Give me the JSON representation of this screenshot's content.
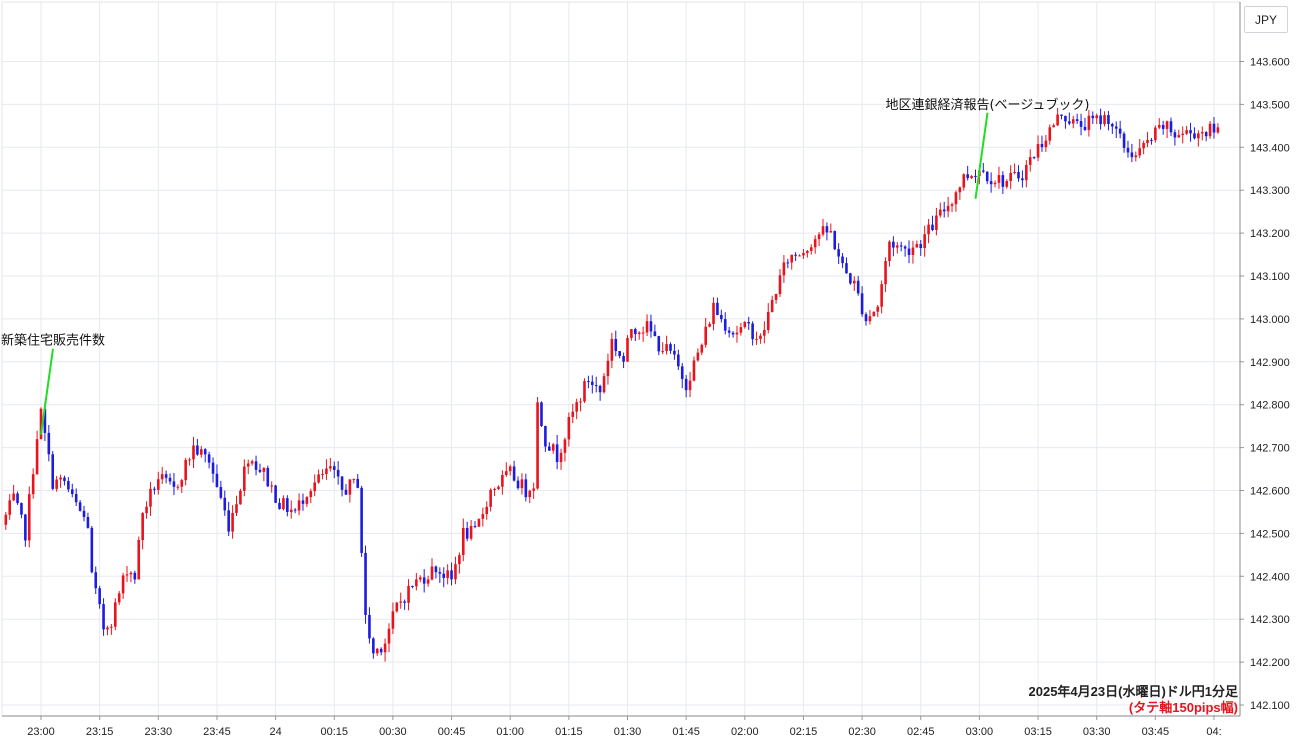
{
  "currency_label": "JPY",
  "caption": {
    "main": "2025年4月23日(水曜日)ドル円1分足",
    "sub": "(タテ軸150pips幅)",
    "sub_color": "#e8141d"
  },
  "colors": {
    "up": "#e8141d",
    "down": "#1c1ce0",
    "annotation_line": "#22dd22",
    "grid": "#e6eaef",
    "axis": "#222222"
  },
  "chart_data": {
    "type": "candlestick",
    "title": "",
    "xlabel": "",
    "ylabel": "",
    "ylim": [
      142.08,
      143.66
    ],
    "y_ticks": [
      "142.100",
      "142.200",
      "142.300",
      "142.400",
      "142.500",
      "142.600",
      "142.700",
      "142.800",
      "142.900",
      "143.000",
      "143.100",
      "143.200",
      "143.300",
      "143.400",
      "143.500",
      "143.600"
    ],
    "x_ticks": [
      "23:00",
      "23:15",
      "23:30",
      "23:45",
      "24",
      "00:15",
      "00:30",
      "00:45",
      "01:00",
      "01:15",
      "01:30",
      "01:45",
      "02:00",
      "02:15",
      "02:30",
      "02:45",
      "03:00",
      "03:15",
      "03:30",
      "03:45",
      "04:"
    ],
    "x_tick_minutes": [
      0,
      15,
      30,
      45,
      60,
      75,
      90,
      105,
      120,
      135,
      150,
      165,
      180,
      195,
      210,
      225,
      240,
      255,
      270,
      285,
      300
    ],
    "x_range_minutes": [
      -9,
      301
    ],
    "keypoints": [
      {
        "m": -9,
        "p": 142.52
      },
      {
        "m": -6,
        "p": 142.58
      },
      {
        "m": -3,
        "p": 142.5
      },
      {
        "m": 0,
        "p": 142.73
      },
      {
        "m": 1,
        "p": 142.78
      },
      {
        "m": 4,
        "p": 142.62
      },
      {
        "m": 7,
        "p": 142.62
      },
      {
        "m": 9,
        "p": 142.58
      },
      {
        "m": 13,
        "p": 142.52
      },
      {
        "m": 14,
        "p": 142.4
      },
      {
        "m": 17,
        "p": 142.28
      },
      {
        "m": 19,
        "p": 142.3
      },
      {
        "m": 23,
        "p": 142.42
      },
      {
        "m": 25,
        "p": 142.4
      },
      {
        "m": 27,
        "p": 142.55
      },
      {
        "m": 31,
        "p": 142.63
      },
      {
        "m": 35,
        "p": 142.6
      },
      {
        "m": 40,
        "p": 142.7
      },
      {
        "m": 44,
        "p": 142.67
      },
      {
        "m": 49,
        "p": 142.52
      },
      {
        "m": 51,
        "p": 142.58
      },
      {
        "m": 54,
        "p": 142.68
      },
      {
        "m": 58,
        "p": 142.64
      },
      {
        "m": 62,
        "p": 142.57
      },
      {
        "m": 66,
        "p": 142.55
      },
      {
        "m": 69,
        "p": 142.6
      },
      {
        "m": 75,
        "p": 142.65
      },
      {
        "m": 78,
        "p": 142.6
      },
      {
        "m": 82,
        "p": 142.62
      },
      {
        "m": 84,
        "p": 142.3
      },
      {
        "m": 86,
        "p": 142.22
      },
      {
        "m": 89,
        "p": 142.25
      },
      {
        "m": 92,
        "p": 142.33
      },
      {
        "m": 96,
        "p": 142.38
      },
      {
        "m": 102,
        "p": 142.42
      },
      {
        "m": 106,
        "p": 142.39
      },
      {
        "m": 109,
        "p": 142.5
      },
      {
        "m": 112,
        "p": 142.5
      },
      {
        "m": 116,
        "p": 142.6
      },
      {
        "m": 121,
        "p": 142.64
      },
      {
        "m": 125,
        "p": 142.6
      },
      {
        "m": 127,
        "p": 142.62
      },
      {
        "m": 128,
        "p": 142.8
      },
      {
        "m": 130,
        "p": 142.72
      },
      {
        "m": 133,
        "p": 142.68
      },
      {
        "m": 137,
        "p": 142.78
      },
      {
        "m": 141,
        "p": 142.86
      },
      {
        "m": 144,
        "p": 142.83
      },
      {
        "m": 147,
        "p": 142.95
      },
      {
        "m": 150,
        "p": 142.9
      },
      {
        "m": 152,
        "p": 142.98
      },
      {
        "m": 156,
        "p": 142.98
      },
      {
        "m": 159,
        "p": 142.94
      },
      {
        "m": 162,
        "p": 142.92
      },
      {
        "m": 166,
        "p": 142.85
      },
      {
        "m": 170,
        "p": 142.94
      },
      {
        "m": 173,
        "p": 143.03
      },
      {
        "m": 175,
        "p": 143.0
      },
      {
        "m": 178,
        "p": 142.97
      },
      {
        "m": 182,
        "p": 142.98
      },
      {
        "m": 185,
        "p": 142.95
      },
      {
        "m": 189,
        "p": 143.07
      },
      {
        "m": 192,
        "p": 143.14
      },
      {
        "m": 196,
        "p": 143.16
      },
      {
        "m": 200,
        "p": 143.2
      },
      {
        "m": 203,
        "p": 143.2
      },
      {
        "m": 206,
        "p": 143.12
      },
      {
        "m": 209,
        "p": 143.08
      },
      {
        "m": 212,
        "p": 143.0
      },
      {
        "m": 215,
        "p": 143.03
      },
      {
        "m": 218,
        "p": 143.18
      },
      {
        "m": 222,
        "p": 143.16
      },
      {
        "m": 226,
        "p": 143.18
      },
      {
        "m": 230,
        "p": 143.23
      },
      {
        "m": 234,
        "p": 143.28
      },
      {
        "m": 237,
        "p": 143.33
      },
      {
        "m": 241,
        "p": 143.35
      },
      {
        "m": 244,
        "p": 143.33
      },
      {
        "m": 248,
        "p": 143.32
      },
      {
        "m": 252,
        "p": 143.34
      },
      {
        "m": 256,
        "p": 143.4
      },
      {
        "m": 259,
        "p": 143.44
      },
      {
        "m": 262,
        "p": 143.48
      },
      {
        "m": 266,
        "p": 143.45
      },
      {
        "m": 270,
        "p": 143.46
      },
      {
        "m": 274,
        "p": 143.47
      },
      {
        "m": 278,
        "p": 143.4
      },
      {
        "m": 281,
        "p": 143.38
      },
      {
        "m": 285,
        "p": 143.42
      },
      {
        "m": 288,
        "p": 143.45
      },
      {
        "m": 291,
        "p": 143.43
      },
      {
        "m": 301,
        "p": 143.44
      }
    ],
    "annotations": [
      {
        "label": "新築住宅販売件数",
        "minute": 0,
        "price": 142.73
      },
      {
        "label": "地区連銀経済報告(ベージュブック)",
        "minute": 239,
        "price": 143.28
      }
    ]
  }
}
